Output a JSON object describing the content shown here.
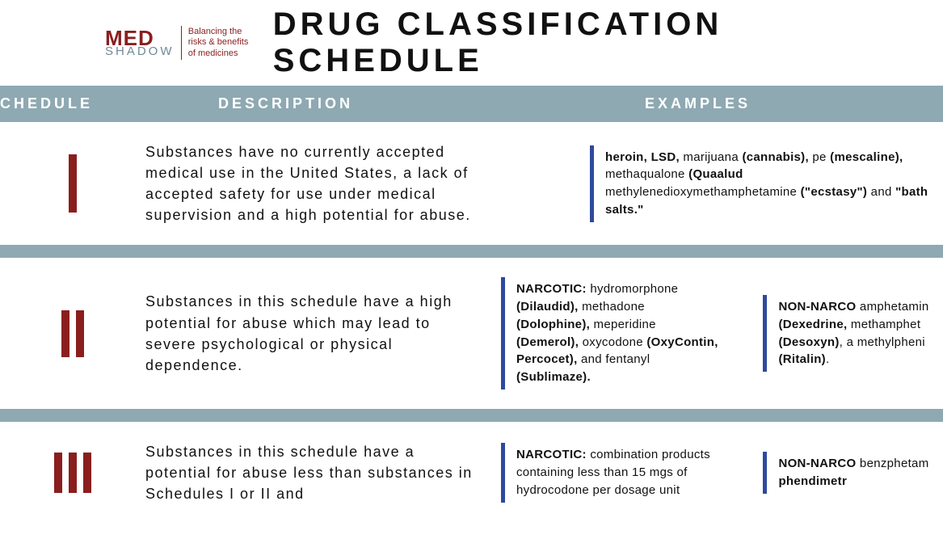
{
  "colors": {
    "brand_red": "#8a1e1e",
    "brand_gray": "#6f8a97",
    "header_bar": "#8ea9b2",
    "header_text": "#ffffff",
    "accent_bar": "#2e4a9e",
    "body_text": "#111111",
    "background": "#ffffff"
  },
  "typography": {
    "title_size": 40,
    "title_letter_spacing": 5,
    "header_label_size": 18,
    "desc_size": 18,
    "example_size": 15
  },
  "logo": {
    "med": "MED",
    "shadow": "SHADOW",
    "tagline": "Balancing the risks & benefits of medicines"
  },
  "title": "DRUG CLASSIFICATION SCHEDULE",
  "headers": {
    "schedule": "CHEDULE",
    "description": "DESCRIPTION",
    "examples": "EXAMPLES"
  },
  "rows": [
    {
      "roman_bars": 1,
      "roman_height": 72,
      "description": "Substances have no currently accepted medical use in the United States, a lack of accepted safety for use under medical supervision and a high potential for abuse.",
      "examples_layout": "single",
      "example_a": "<b>heroin, LSD,</b> marijuana <b>(cannabis),</b> pe <b>(mescaline),</b> methaqualone <b>(Quaalud</b> methylenedioxymethamphetamine <b>(\"ecstasy\")</b> and <b>\"bath salts.\"</b>"
    },
    {
      "roman_bars": 2,
      "roman_height": 58,
      "description": "Substances in this schedule have a high potential for abuse which may lead to severe psychological or physical dependence.",
      "examples_layout": "double",
      "example_a": "<b>NARCOTIC:</b> hydromorphone <b>(Dilaudid),</b> methadone <b>(Dolophine),</b> meperidine <b>(Demerol),</b> oxycodone <b>(OxyContin, Percocet),</b> and fentanyl <b>(Sublimaze).</b>",
      "example_b": "<b>NON-NARCO</b> amphetamin <b>(Dexedrine,</b> methamphet <b>(Desoxyn)</b>, a methylpheni <b>(Ritalin)</b>."
    },
    {
      "roman_bars": 3,
      "roman_height": 50,
      "description": "Substances in this schedule have a potential for abuse less than substances in Schedules I or II and",
      "examples_layout": "double",
      "example_a": "<b>NARCOTIC:</b> combination products containing less than 15 mgs of hydrocodone per dosage unit",
      "example_b": "<b>NON-NARCO</b> benzphetam <b>phendimetr</b>"
    }
  ]
}
